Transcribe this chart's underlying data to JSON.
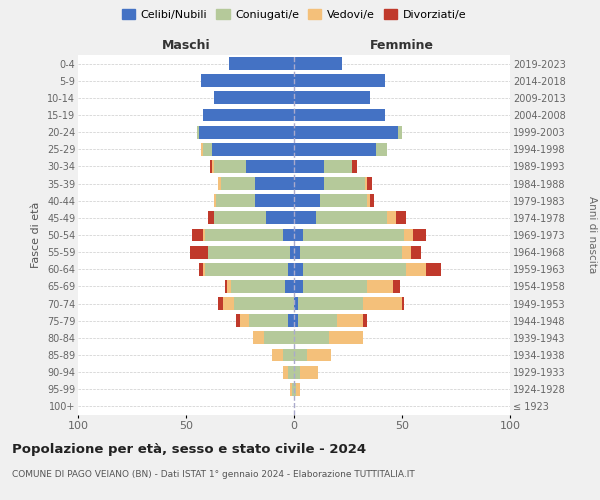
{
  "age_groups": [
    "100+",
    "95-99",
    "90-94",
    "85-89",
    "80-84",
    "75-79",
    "70-74",
    "65-69",
    "60-64",
    "55-59",
    "50-54",
    "45-49",
    "40-44",
    "35-39",
    "30-34",
    "25-29",
    "20-24",
    "15-19",
    "10-14",
    "5-9",
    "0-4"
  ],
  "birth_years": [
    "≤ 1923",
    "1924-1928",
    "1929-1933",
    "1934-1938",
    "1939-1943",
    "1944-1948",
    "1949-1953",
    "1954-1958",
    "1959-1963",
    "1964-1968",
    "1969-1973",
    "1974-1978",
    "1979-1983",
    "1984-1988",
    "1989-1993",
    "1994-1998",
    "1999-2003",
    "2004-2008",
    "2009-2013",
    "2014-2018",
    "2019-2023"
  ],
  "maschi": {
    "celibi": [
      0,
      0,
      0,
      0,
      0,
      3,
      0,
      4,
      3,
      2,
      5,
      13,
      18,
      18,
      22,
      38,
      44,
      42,
      37,
      43,
      30
    ],
    "coniugati": [
      0,
      1,
      3,
      5,
      14,
      18,
      28,
      25,
      38,
      38,
      36,
      24,
      18,
      16,
      15,
      4,
      1,
      0,
      0,
      0,
      0
    ],
    "vedovi": [
      0,
      1,
      2,
      5,
      5,
      4,
      5,
      2,
      1,
      0,
      1,
      0,
      1,
      1,
      1,
      1,
      0,
      0,
      0,
      0,
      0
    ],
    "divorziati": [
      0,
      0,
      0,
      0,
      0,
      2,
      2,
      1,
      2,
      8,
      5,
      3,
      0,
      0,
      1,
      0,
      0,
      0,
      0,
      0,
      0
    ]
  },
  "femmine": {
    "nubili": [
      0,
      0,
      0,
      0,
      0,
      2,
      2,
      4,
      4,
      3,
      4,
      10,
      12,
      14,
      14,
      38,
      48,
      42,
      35,
      42,
      22
    ],
    "coniugate": [
      0,
      1,
      3,
      6,
      16,
      18,
      30,
      30,
      48,
      47,
      47,
      33,
      22,
      19,
      13,
      5,
      2,
      0,
      0,
      0,
      0
    ],
    "vedove": [
      0,
      2,
      8,
      11,
      16,
      12,
      18,
      12,
      9,
      4,
      4,
      4,
      1,
      1,
      0,
      0,
      0,
      0,
      0,
      0,
      0
    ],
    "divorziate": [
      0,
      0,
      0,
      0,
      0,
      2,
      1,
      3,
      7,
      5,
      6,
      5,
      2,
      2,
      2,
      0,
      0,
      0,
      0,
      0,
      0
    ]
  },
  "colors": {
    "celibi_nubili": "#4472C4",
    "coniugati": "#b5c99a",
    "vedovi": "#f4c07a",
    "divorziati": "#c0392b"
  },
  "xlim": 100,
  "title": "Popolazione per età, sesso e stato civile - 2024",
  "subtitle": "COMUNE DI PAGO VEIANO (BN) - Dati ISTAT 1° gennaio 2024 - Elaborazione TUTTITALIA.IT",
  "xlabel_left": "Maschi",
  "xlabel_right": "Femmine",
  "ylabel_left": "Fasce di età",
  "ylabel_right": "Anni di nascita",
  "bg_color": "#f0f0f0",
  "plot_bg_color": "#ffffff"
}
